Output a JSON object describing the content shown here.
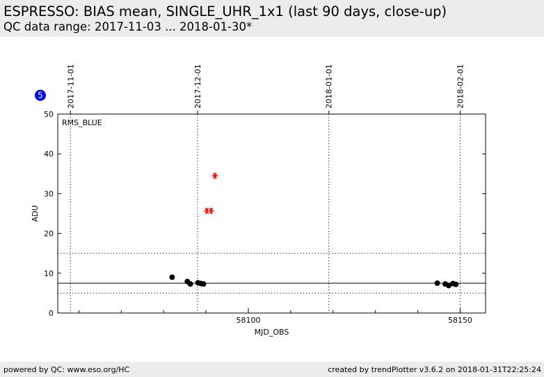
{
  "header": {
    "title": "ESPRESSO: BIAS mean, SINGLE_UHR_1x1 (last 90 days, close-up)",
    "subtitle": "QC data range: 2017-11-03 ... 2018-01-30*"
  },
  "footer": {
    "left": "powered by QC: www.eso.org/HC",
    "right": "created by trendPlotter v3.6.2 on 2018-01-31T22:25:24"
  },
  "badge": {
    "label": "5",
    "color": "#0000ee"
  },
  "chart_data": {
    "type": "scatter",
    "title": "",
    "xlabel": "MJD_OBS",
    "ylabel": "ADU",
    "panel_label": "RMS_BLUE",
    "xlim": [
      58055,
      58156
    ],
    "ylim": [
      0,
      50
    ],
    "x_ticks": [
      58100,
      58150
    ],
    "y_ticks": [
      0,
      10,
      20,
      30,
      40,
      50
    ],
    "top_axis_dates": [
      {
        "label": "2017-11-01",
        "mjd": 58058
      },
      {
        "label": "2017-12-01",
        "mjd": 58088
      },
      {
        "label": "2018-01-01",
        "mjd": 58119
      },
      {
        "label": "2018-02-01",
        "mjd": 58150
      }
    ],
    "reference_line": 7.5,
    "limit_lines": [
      5,
      15
    ],
    "grid": "vertical dotted lines at month starts",
    "series": [
      {
        "marker": "circle",
        "color": "#000000",
        "x": [
          58082,
          58085.6,
          58086.3,
          58088.1,
          58088.8,
          58089.4,
          58144.6,
          58146.5,
          58147.3,
          58148.3,
          58149
        ],
        "y": [
          9.0,
          7.9,
          7.3,
          7.6,
          7.4,
          7.3,
          7.5,
          7.3,
          6.9,
          7.4,
          7.2
        ]
      },
      {
        "marker": "star",
        "color": "#ff0000",
        "x": [
          58090.2,
          58091.2,
          58092.1
        ],
        "y": [
          25.7,
          25.7,
          34.5
        ]
      }
    ]
  }
}
